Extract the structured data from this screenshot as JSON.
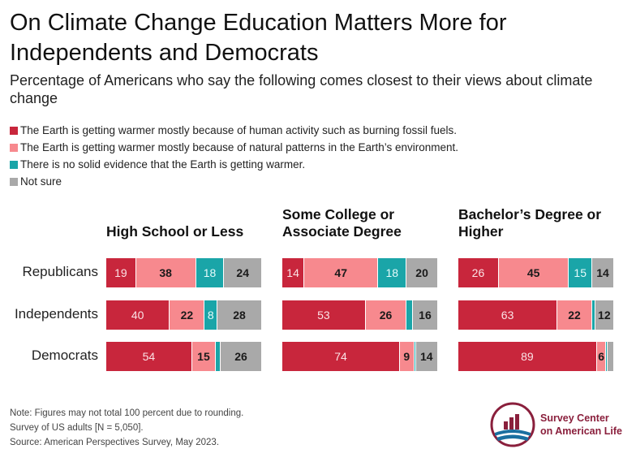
{
  "title": "On Climate Change Education Matters More for Independents and Democrats",
  "subtitle": "Percentage of Americans who say the following comes closest to their views about climate change",
  "legend": [
    {
      "label": "The Earth is getting warmer mostly because of human activity such as burning fossil fuels.",
      "color": "#c8263c"
    },
    {
      "label": "The Earth is getting warmer mostly because of natural patterns in the Earth’s environment.",
      "color": "#f7898e"
    },
    {
      "label": "There is no solid evidence that the Earth is getting warmer.",
      "color": "#1aa5a8"
    },
    {
      "label": "Not sure",
      "color": "#a9a9a9"
    }
  ],
  "chart_data": {
    "type": "bar",
    "stacked": true,
    "orientation": "horizontal",
    "categories": [
      "Republicans",
      "Independents",
      "Democrats"
    ],
    "series_labels": [
      "The Earth is getting warmer mostly because of human activity such as burning fossil fuels.",
      "The Earth is getting warmer mostly because of natural patterns in the Earth’s environment.",
      "There is no solid evidence that the Earth is getting warmer.",
      "Not sure"
    ],
    "panels": [
      {
        "title": "High School or Less",
        "rows": [
          {
            "category": "Republicans",
            "values": [
              19,
              38,
              18,
              24
            ],
            "labels": [
              "19",
              "38",
              "18",
              "24"
            ]
          },
          {
            "category": "Independents",
            "values": [
              40,
              22,
              8,
              28
            ],
            "labels": [
              "40",
              "22",
              "8",
              "28"
            ]
          },
          {
            "category": "Democrats",
            "values": [
              54,
              15,
              3,
              26
            ],
            "labels": [
              "54",
              "15",
              "",
              "26"
            ]
          }
        ]
      },
      {
        "title": "Some College or Associate Degree",
        "rows": [
          {
            "category": "Republicans",
            "values": [
              14,
              47,
              18,
              20
            ],
            "labels": [
              "14",
              "47",
              "18",
              "20"
            ]
          },
          {
            "category": "Independents",
            "values": [
              53,
              26,
              4,
              16
            ],
            "labels": [
              "53",
              "26",
              "",
              "16"
            ]
          },
          {
            "category": "Democrats",
            "values": [
              74,
              9,
              1,
              14
            ],
            "labels": [
              "74",
              "9",
              "",
              "14"
            ]
          }
        ]
      },
      {
        "title": "Bachelor’s Degree or Higher",
        "rows": [
          {
            "category": "Republicans",
            "values": [
              26,
              45,
              15,
              14
            ],
            "labels": [
              "26",
              "45",
              "15",
              "14"
            ]
          },
          {
            "category": "Independents",
            "values": [
              63,
              22,
              2,
              12
            ],
            "labels": [
              "63",
              "22",
              "",
              "12"
            ]
          },
          {
            "category": "Democrats",
            "values": [
              89,
              6,
              1,
              4
            ],
            "labels": [
              "89",
              "6",
              "",
              ""
            ]
          }
        ]
      }
    ]
  },
  "notes": [
    "Note: Figures may not total 100 percent due to rounding.",
    "Survey of US adults [N = 5,050].",
    "Source: American Perspectives Survey, May 2023."
  ],
  "logo": {
    "line1": "Survey Center",
    "line2": "on American Life"
  }
}
